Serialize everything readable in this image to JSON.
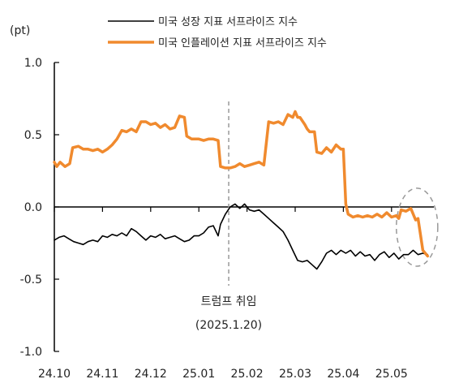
{
  "chart_data": {
    "type": "line",
    "unit_label": "(pt)",
    "ylim": [
      -1.0,
      1.0
    ],
    "yticks": [
      {
        "value": 1.0,
        "label": "1.0"
      },
      {
        "value": 0.5,
        "label": "0.5"
      },
      {
        "value": 0.0,
        "label": "0.0"
      },
      {
        "value": -0.5,
        "label": "-0.5"
      },
      {
        "value": -1.0,
        "label": "-1.0"
      }
    ],
    "xlim": [
      0,
      7.85
    ],
    "xticks": [
      {
        "value": 0,
        "label": "24.10"
      },
      {
        "value": 1,
        "label": "24.11"
      },
      {
        "value": 2,
        "label": "24.12"
      },
      {
        "value": 3,
        "label": "25.01"
      },
      {
        "value": 4,
        "label": "25.02"
      },
      {
        "value": 5,
        "label": "25.03"
      },
      {
        "value": 6,
        "label": "25.04"
      },
      {
        "value": 7,
        "label": "25.05"
      }
    ],
    "legend_position": "top",
    "series": [
      {
        "name": "미국 성장 지표 서프라이즈 지수",
        "color": "#000000",
        "points": [
          [
            0.0,
            -0.23
          ],
          [
            0.1,
            -0.21
          ],
          [
            0.2,
            -0.2
          ],
          [
            0.3,
            -0.22
          ],
          [
            0.4,
            -0.24
          ],
          [
            0.5,
            -0.25
          ],
          [
            0.6,
            -0.26
          ],
          [
            0.7,
            -0.24
          ],
          [
            0.8,
            -0.23
          ],
          [
            0.9,
            -0.24
          ],
          [
            1.0,
            -0.2
          ],
          [
            1.1,
            -0.21
          ],
          [
            1.2,
            -0.19
          ],
          [
            1.3,
            -0.2
          ],
          [
            1.4,
            -0.18
          ],
          [
            1.5,
            -0.2
          ],
          [
            1.6,
            -0.15
          ],
          [
            1.7,
            -0.17
          ],
          [
            1.8,
            -0.2
          ],
          [
            1.9,
            -0.23
          ],
          [
            2.0,
            -0.2
          ],
          [
            2.1,
            -0.21
          ],
          [
            2.2,
            -0.19
          ],
          [
            2.3,
            -0.22
          ],
          [
            2.4,
            -0.21
          ],
          [
            2.5,
            -0.2
          ],
          [
            2.6,
            -0.22
          ],
          [
            2.7,
            -0.24
          ],
          [
            2.8,
            -0.23
          ],
          [
            2.9,
            -0.2
          ],
          [
            3.0,
            -0.2
          ],
          [
            3.1,
            -0.18
          ],
          [
            3.2,
            -0.14
          ],
          [
            3.3,
            -0.13
          ],
          [
            3.4,
            -0.2
          ],
          [
            3.45,
            -0.12
          ],
          [
            3.55,
            -0.05
          ],
          [
            3.65,
            0.0
          ],
          [
            3.75,
            0.02
          ],
          [
            3.85,
            -0.01
          ],
          [
            3.95,
            0.02
          ],
          [
            4.05,
            -0.02
          ],
          [
            4.15,
            -0.03
          ],
          [
            4.25,
            -0.02
          ],
          [
            4.35,
            -0.05
          ],
          [
            4.45,
            -0.08
          ],
          [
            4.55,
            -0.11
          ],
          [
            4.65,
            -0.14
          ],
          [
            4.75,
            -0.17
          ],
          [
            4.85,
            -0.23
          ],
          [
            4.95,
            -0.3
          ],
          [
            5.05,
            -0.37
          ],
          [
            5.15,
            -0.38
          ],
          [
            5.25,
            -0.37
          ],
          [
            5.35,
            -0.4
          ],
          [
            5.45,
            -0.43
          ],
          [
            5.55,
            -0.38
          ],
          [
            5.65,
            -0.32
          ],
          [
            5.75,
            -0.3
          ],
          [
            5.85,
            -0.33
          ],
          [
            5.95,
            -0.3
          ],
          [
            6.05,
            -0.32
          ],
          [
            6.15,
            -0.3
          ],
          [
            6.25,
            -0.34
          ],
          [
            6.35,
            -0.31
          ],
          [
            6.45,
            -0.34
          ],
          [
            6.55,
            -0.33
          ],
          [
            6.65,
            -0.37
          ],
          [
            6.75,
            -0.33
          ],
          [
            6.85,
            -0.31
          ],
          [
            6.95,
            -0.35
          ],
          [
            7.05,
            -0.32
          ],
          [
            7.15,
            -0.36
          ],
          [
            7.25,
            -0.33
          ],
          [
            7.35,
            -0.33
          ],
          [
            7.45,
            -0.3
          ],
          [
            7.55,
            -0.33
          ],
          [
            7.65,
            -0.32
          ],
          [
            7.75,
            -0.33
          ]
        ]
      },
      {
        "name": "미국 인플레이션 지표 서프라이즈 지수",
        "color": "#f08a2e",
        "points": [
          [
            0.0,
            0.31
          ],
          [
            0.05,
            0.28
          ],
          [
            0.12,
            0.31
          ],
          [
            0.22,
            0.28
          ],
          [
            0.32,
            0.3
          ],
          [
            0.38,
            0.41
          ],
          [
            0.5,
            0.42
          ],
          [
            0.6,
            0.4
          ],
          [
            0.7,
            0.4
          ],
          [
            0.8,
            0.39
          ],
          [
            0.9,
            0.4
          ],
          [
            1.0,
            0.38
          ],
          [
            1.1,
            0.4
          ],
          [
            1.2,
            0.43
          ],
          [
            1.3,
            0.47
          ],
          [
            1.4,
            0.53
          ],
          [
            1.5,
            0.52
          ],
          [
            1.6,
            0.54
          ],
          [
            1.7,
            0.52
          ],
          [
            1.8,
            0.59
          ],
          [
            1.9,
            0.59
          ],
          [
            2.0,
            0.57
          ],
          [
            2.1,
            0.58
          ],
          [
            2.2,
            0.55
          ],
          [
            2.3,
            0.57
          ],
          [
            2.4,
            0.54
          ],
          [
            2.5,
            0.55
          ],
          [
            2.6,
            0.63
          ],
          [
            2.7,
            0.62
          ],
          [
            2.75,
            0.49
          ],
          [
            2.85,
            0.47
          ],
          [
            3.0,
            0.47
          ],
          [
            3.1,
            0.46
          ],
          [
            3.2,
            0.47
          ],
          [
            3.3,
            0.47
          ],
          [
            3.4,
            0.46
          ],
          [
            3.45,
            0.28
          ],
          [
            3.55,
            0.27
          ],
          [
            3.65,
            0.27
          ],
          [
            3.75,
            0.28
          ],
          [
            3.85,
            0.3
          ],
          [
            3.95,
            0.28
          ],
          [
            4.05,
            0.29
          ],
          [
            4.15,
            0.3
          ],
          [
            4.25,
            0.31
          ],
          [
            4.35,
            0.29
          ],
          [
            4.45,
            0.59
          ],
          [
            4.55,
            0.58
          ],
          [
            4.65,
            0.59
          ],
          [
            4.75,
            0.57
          ],
          [
            4.85,
            0.64
          ],
          [
            4.95,
            0.62
          ],
          [
            5.0,
            0.66
          ],
          [
            5.05,
            0.62
          ],
          [
            5.1,
            0.62
          ],
          [
            5.2,
            0.57
          ],
          [
            5.25,
            0.54
          ],
          [
            5.3,
            0.52
          ],
          [
            5.4,
            0.52
          ],
          [
            5.45,
            0.38
          ],
          [
            5.55,
            0.37
          ],
          [
            5.65,
            0.41
          ],
          [
            5.75,
            0.38
          ],
          [
            5.85,
            0.43
          ],
          [
            5.95,
            0.4
          ],
          [
            6.0,
            0.4
          ],
          [
            6.05,
            0.02
          ],
          [
            6.1,
            -0.05
          ],
          [
            6.2,
            -0.07
          ],
          [
            6.3,
            -0.06
          ],
          [
            6.4,
            -0.07
          ],
          [
            6.5,
            -0.06
          ],
          [
            6.6,
            -0.07
          ],
          [
            6.7,
            -0.05
          ],
          [
            6.8,
            -0.07
          ],
          [
            6.9,
            -0.04
          ],
          [
            7.0,
            -0.07
          ],
          [
            7.1,
            -0.06
          ],
          [
            7.15,
            -0.08
          ],
          [
            7.2,
            -0.02
          ],
          [
            7.3,
            -0.03
          ],
          [
            7.4,
            -0.01
          ],
          [
            7.5,
            -0.09
          ],
          [
            7.55,
            -0.08
          ],
          [
            7.65,
            -0.3
          ],
          [
            7.75,
            -0.34
          ]
        ]
      }
    ],
    "annotations": {
      "vline": {
        "x": 3.62,
        "label": "트럼프 취임",
        "sublabel": "(2025.1.20)"
      },
      "ellipse": {
        "cx": 7.53,
        "cy": -0.14,
        "rx": 0.43,
        "ry": 0.27
      }
    }
  }
}
